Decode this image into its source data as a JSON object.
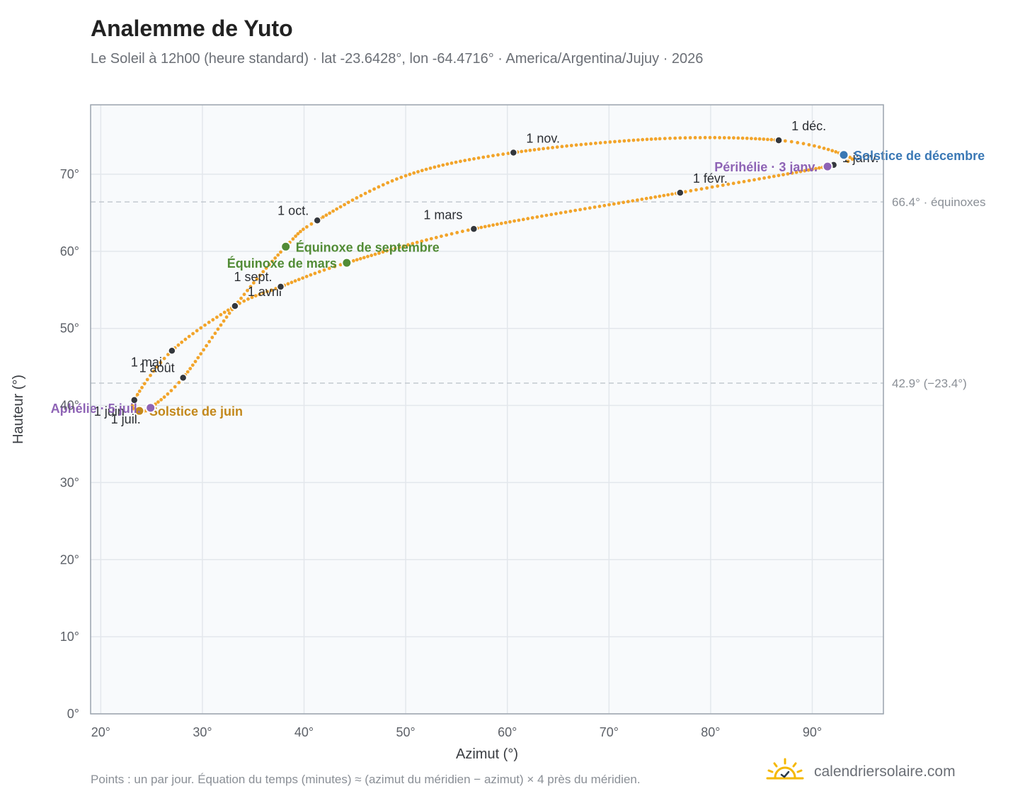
{
  "title": "Analemme de Yuto",
  "subtitle": "Le Soleil à 12h00 (heure standard) · lat -23.6428°, lon -64.4716° · America/Argentina/Jujuy · 2026",
  "footnote": "Points : un par jour. Équation du temps (minutes) ≈ (azimut du méridien − azimut) × 4 près du méridien.",
  "brand": {
    "name": "calendriersolaire.com",
    "icon": "sun-check-logo-icon",
    "color": "#f5b800"
  },
  "colors": {
    "curve": "#f2a42a",
    "month_point": "#33373d",
    "grid": "#e3e7ec",
    "plot_bg": "#f8fafc",
    "axis": "#9aa3ad"
  },
  "chart_data": {
    "type": "scatter",
    "xlabel": "Azimut (°)",
    "ylabel": "Hauteur (°)",
    "xlim": [
      19,
      97
    ],
    "ylim": [
      0,
      79
    ],
    "xticks": [
      20,
      30,
      40,
      50,
      60,
      70,
      80,
      90
    ],
    "yticks": [
      0,
      10,
      20,
      30,
      40,
      50,
      60,
      70
    ],
    "xtick_labels": [
      "20°",
      "30°",
      "40°",
      "50°",
      "60°",
      "70°",
      "80°",
      "90°"
    ],
    "ytick_labels": [
      "0°",
      "10°",
      "20°",
      "30°",
      "40°",
      "50°",
      "60°",
      "70°"
    ],
    "grid": true,
    "analemma_path": [
      {
        "month": "janv",
        "x": 92.1,
        "y": 71.2
      },
      {
        "month": "févr",
        "x": 77.0,
        "y": 67.6
      },
      {
        "month": "mars",
        "x": 56.7,
        "y": 62.9
      },
      {
        "month": "mars",
        "x": 44.2,
        "y": 58.5
      },
      {
        "month": "avril",
        "x": 37.7,
        "y": 55.4
      },
      {
        "month": "avril",
        "x": 33.2,
        "y": 52.9
      },
      {
        "month": "mai",
        "x": 27.0,
        "y": 47.1
      },
      {
        "month": "mai",
        "x": 23.3,
        "y": 40.7
      },
      {
        "month": "juin",
        "x": 23.8,
        "y": 39.3
      },
      {
        "month": "juil",
        "x": 24.9,
        "y": 39.7
      },
      {
        "month": "juil",
        "x": 28.1,
        "y": 43.6
      },
      {
        "month": "août",
        "x": 33.2,
        "y": 52.9
      },
      {
        "month": "sept",
        "x": 38.2,
        "y": 60.6
      },
      {
        "month": "oct",
        "x": 41.3,
        "y": 64.0
      },
      {
        "month": "oct",
        "x": 50.0,
        "y": 69.8
      },
      {
        "month": "nov",
        "x": 60.6,
        "y": 72.8
      },
      {
        "month": "nov",
        "x": 75.0,
        "y": 74.6
      },
      {
        "month": "déc",
        "x": 86.7,
        "y": 74.4
      },
      {
        "month": "déc",
        "x": 93.1,
        "y": 72.5
      },
      {
        "month": "janv",
        "x": 92.1,
        "y": 71.2
      }
    ],
    "month_points": [
      {
        "label": "1 janv.",
        "x": 92.1,
        "y": 71.2,
        "pos": "right"
      },
      {
        "label": "1 févr.",
        "x": 77.0,
        "y": 67.6,
        "pos": "above"
      },
      {
        "label": "1 mars",
        "x": 56.7,
        "y": 62.9,
        "pos": "above-left"
      },
      {
        "label": "1 avril",
        "x": 33.2,
        "y": 52.9,
        "pos": "above"
      },
      {
        "label": "1 mai",
        "x": 27.0,
        "y": 47.1,
        "pos": "below-left"
      },
      {
        "label": "1 juin",
        "x": 23.3,
        "y": 40.7,
        "pos": "below-left"
      },
      {
        "label": "1 juil.",
        "x": 24.9,
        "y": 39.7,
        "pos": "below-left"
      },
      {
        "label": "1 août",
        "x": 28.1,
        "y": 43.6,
        "pos": "left"
      },
      {
        "label": "1 sept.",
        "x": 37.7,
        "y": 55.4,
        "pos": "left"
      },
      {
        "label": "1 oct.",
        "x": 41.3,
        "y": 64.0,
        "pos": "left"
      },
      {
        "label": "1 nov.",
        "x": 60.6,
        "y": 72.8,
        "pos": "above"
      },
      {
        "label": "1 déc.",
        "x": 86.7,
        "y": 74.4,
        "pos": "above"
      }
    ],
    "annotations": [
      {
        "label": "Solstice de décembre",
        "x": 93.1,
        "y": 72.5,
        "color": "#3a78b5",
        "pos": "right"
      },
      {
        "label": "Périhélie · 3 janv.",
        "x": 91.5,
        "y": 71.0,
        "color": "#8e63b5",
        "pos": "left"
      },
      {
        "label": "Équinoxe de septembre",
        "x": 38.2,
        "y": 60.6,
        "color": "#528c36",
        "pos": "right"
      },
      {
        "label": "Équinoxe de mars",
        "x": 44.2,
        "y": 58.5,
        "color": "#528c36",
        "pos": "left"
      },
      {
        "label": "Solstice de juin",
        "x": 23.8,
        "y": 39.3,
        "color": "#c3881b",
        "pos": "right"
      },
      {
        "label": "Aphélie · 5 juil.",
        "x": 24.9,
        "y": 39.7,
        "color": "#8e63b5",
        "pos": "left"
      }
    ],
    "reference_lines": [
      {
        "y": 66.4,
        "label": "66.4° · équinoxes"
      },
      {
        "y": 42.9,
        "label": "42.9° (−23.4°)"
      }
    ]
  }
}
